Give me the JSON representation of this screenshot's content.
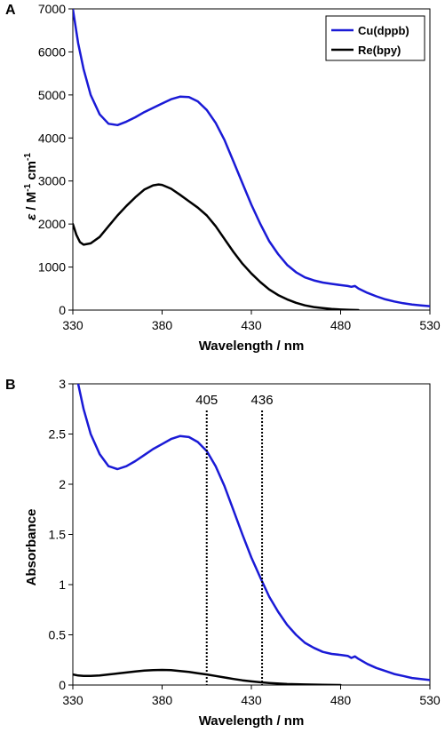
{
  "chart_data": [
    {
      "panel_label": "A",
      "type": "line",
      "xlabel": "Wavelength / nm",
      "ylabel": "ε / M⁻¹ cm⁻¹",
      "ylabel_parts": {
        "symbol": "ε",
        "unit_a": " / M",
        "sup_a": "-1",
        "unit_b": " cm",
        "sup_b": "-1"
      },
      "xlim": [
        330,
        530
      ],
      "ylim": [
        0,
        7000
      ],
      "xticks": [
        330,
        380,
        430,
        480,
        530
      ],
      "yticks": [
        0,
        1000,
        2000,
        3000,
        4000,
        5000,
        6000,
        7000
      ],
      "grid": false,
      "legend_position": "top-right",
      "series": [
        {
          "name": "Cu(dppb)",
          "color": "#1a1ad6",
          "points": [
            [
              330,
              7000
            ],
            [
              333,
              6200
            ],
            [
              336,
              5600
            ],
            [
              340,
              5000
            ],
            [
              345,
              4550
            ],
            [
              350,
              4330
            ],
            [
              355,
              4300
            ],
            [
              360,
              4380
            ],
            [
              365,
              4480
            ],
            [
              370,
              4600
            ],
            [
              375,
              4700
            ],
            [
              380,
              4800
            ],
            [
              385,
              4900
            ],
            [
              390,
              4960
            ],
            [
              395,
              4950
            ],
            [
              400,
              4850
            ],
            [
              405,
              4650
            ],
            [
              410,
              4350
            ],
            [
              415,
              3950
            ],
            [
              420,
              3450
            ],
            [
              425,
              2950
            ],
            [
              430,
              2450
            ],
            [
              435,
              2000
            ],
            [
              440,
              1600
            ],
            [
              445,
              1300
            ],
            [
              450,
              1050
            ],
            [
              455,
              880
            ],
            [
              460,
              760
            ],
            [
              465,
              690
            ],
            [
              470,
              640
            ],
            [
              475,
              610
            ],
            [
              480,
              580
            ],
            [
              484,
              560
            ],
            [
              486,
              540
            ],
            [
              488,
              560
            ],
            [
              490,
              500
            ],
            [
              495,
              400
            ],
            [
              500,
              320
            ],
            [
              505,
              250
            ],
            [
              510,
              200
            ],
            [
              515,
              160
            ],
            [
              520,
              130
            ],
            [
              525,
              110
            ],
            [
              530,
              90
            ]
          ]
        },
        {
          "name": "Re(bpy)",
          "color": "#000000",
          "points": [
            [
              330,
              2000
            ],
            [
              332,
              1750
            ],
            [
              334,
              1580
            ],
            [
              336,
              1520
            ],
            [
              340,
              1550
            ],
            [
              345,
              1700
            ],
            [
              350,
              1950
            ],
            [
              355,
              2200
            ],
            [
              360,
              2420
            ],
            [
              365,
              2620
            ],
            [
              370,
              2800
            ],
            [
              375,
              2900
            ],
            [
              378,
              2920
            ],
            [
              380,
              2910
            ],
            [
              385,
              2820
            ],
            [
              390,
              2680
            ],
            [
              395,
              2530
            ],
            [
              400,
              2380
            ],
            [
              405,
              2200
            ],
            [
              410,
              1950
            ],
            [
              415,
              1650
            ],
            [
              420,
              1350
            ],
            [
              425,
              1080
            ],
            [
              430,
              850
            ],
            [
              435,
              650
            ],
            [
              440,
              480
            ],
            [
              445,
              350
            ],
            [
              450,
              250
            ],
            [
              455,
              170
            ],
            [
              460,
              110
            ],
            [
              465,
              70
            ],
            [
              470,
              45
            ],
            [
              475,
              25
            ],
            [
              480,
              12
            ],
            [
              485,
              5
            ],
            [
              490,
              0
            ]
          ]
        }
      ]
    },
    {
      "panel_label": "B",
      "type": "line",
      "xlabel": "Wavelength / nm",
      "ylabel": "Absorbance",
      "xlim": [
        330,
        530
      ],
      "ylim": [
        0,
        3
      ],
      "xticks": [
        330,
        380,
        430,
        480,
        530
      ],
      "yticks": [
        0,
        0.5,
        1,
        1.5,
        2,
        2.5,
        3
      ],
      "ytick_labels": [
        "0",
        "0.5",
        "1",
        "1.5",
        "2",
        "2.5",
        "3"
      ],
      "grid": false,
      "reference_lines": [
        {
          "x": 405,
          "label": "405",
          "style": "dotted"
        },
        {
          "x": 436,
          "label": "436",
          "style": "dotted"
        }
      ],
      "series": [
        {
          "color": "#1a1ad6",
          "points": [
            [
              333,
              3000
            ],
            [
              336,
              2750
            ],
            [
              340,
              2500
            ],
            [
              345,
              2300
            ],
            [
              350,
              2180
            ],
            [
              355,
              2150
            ],
            [
              360,
              2180
            ],
            [
              365,
              2230
            ],
            [
              370,
              2290
            ],
            [
              375,
              2350
            ],
            [
              380,
              2400
            ],
            [
              385,
              2450
            ],
            [
              390,
              2480
            ],
            [
              395,
              2470
            ],
            [
              400,
              2420
            ],
            [
              405,
              2330
            ],
            [
              410,
              2180
            ],
            [
              415,
              1980
            ],
            [
              420,
              1740
            ],
            [
              425,
              1500
            ],
            [
              430,
              1270
            ],
            [
              435,
              1070
            ],
            [
              440,
              880
            ],
            [
              445,
              730
            ],
            [
              450,
              600
            ],
            [
              455,
              500
            ],
            [
              460,
              420
            ],
            [
              465,
              370
            ],
            [
              470,
              330
            ],
            [
              475,
              310
            ],
            [
              480,
              300
            ],
            [
              484,
              290
            ],
            [
              486,
              270
            ],
            [
              488,
              285
            ],
            [
              490,
              260
            ],
            [
              495,
              210
            ],
            [
              500,
              170
            ],
            [
              505,
              140
            ],
            [
              510,
              110
            ],
            [
              515,
              90
            ],
            [
              520,
              70
            ],
            [
              525,
              60
            ],
            [
              530,
              50
            ]
          ]
        },
        {
          "color": "#000000",
          "points": [
            [
              330,
              105
            ],
            [
              333,
              95
            ],
            [
              336,
              90
            ],
            [
              340,
              90
            ],
            [
              345,
              95
            ],
            [
              350,
              105
            ],
            [
              355,
              115
            ],
            [
              360,
              125
            ],
            [
              365,
              135
            ],
            [
              370,
              143
            ],
            [
              375,
              148
            ],
            [
              380,
              150
            ],
            [
              385,
              148
            ],
            [
              390,
              140
            ],
            [
              395,
              130
            ],
            [
              400,
              118
            ],
            [
              405,
              105
            ],
            [
              410,
              90
            ],
            [
              415,
              75
            ],
            [
              420,
              60
            ],
            [
              425,
              47
            ],
            [
              430,
              36
            ],
            [
              435,
              27
            ],
            [
              440,
              20
            ],
            [
              450,
              10
            ],
            [
              460,
              5
            ],
            [
              470,
              2
            ],
            [
              480,
              0
            ]
          ]
        }
      ],
      "series_y_scale": 0.001
    }
  ]
}
